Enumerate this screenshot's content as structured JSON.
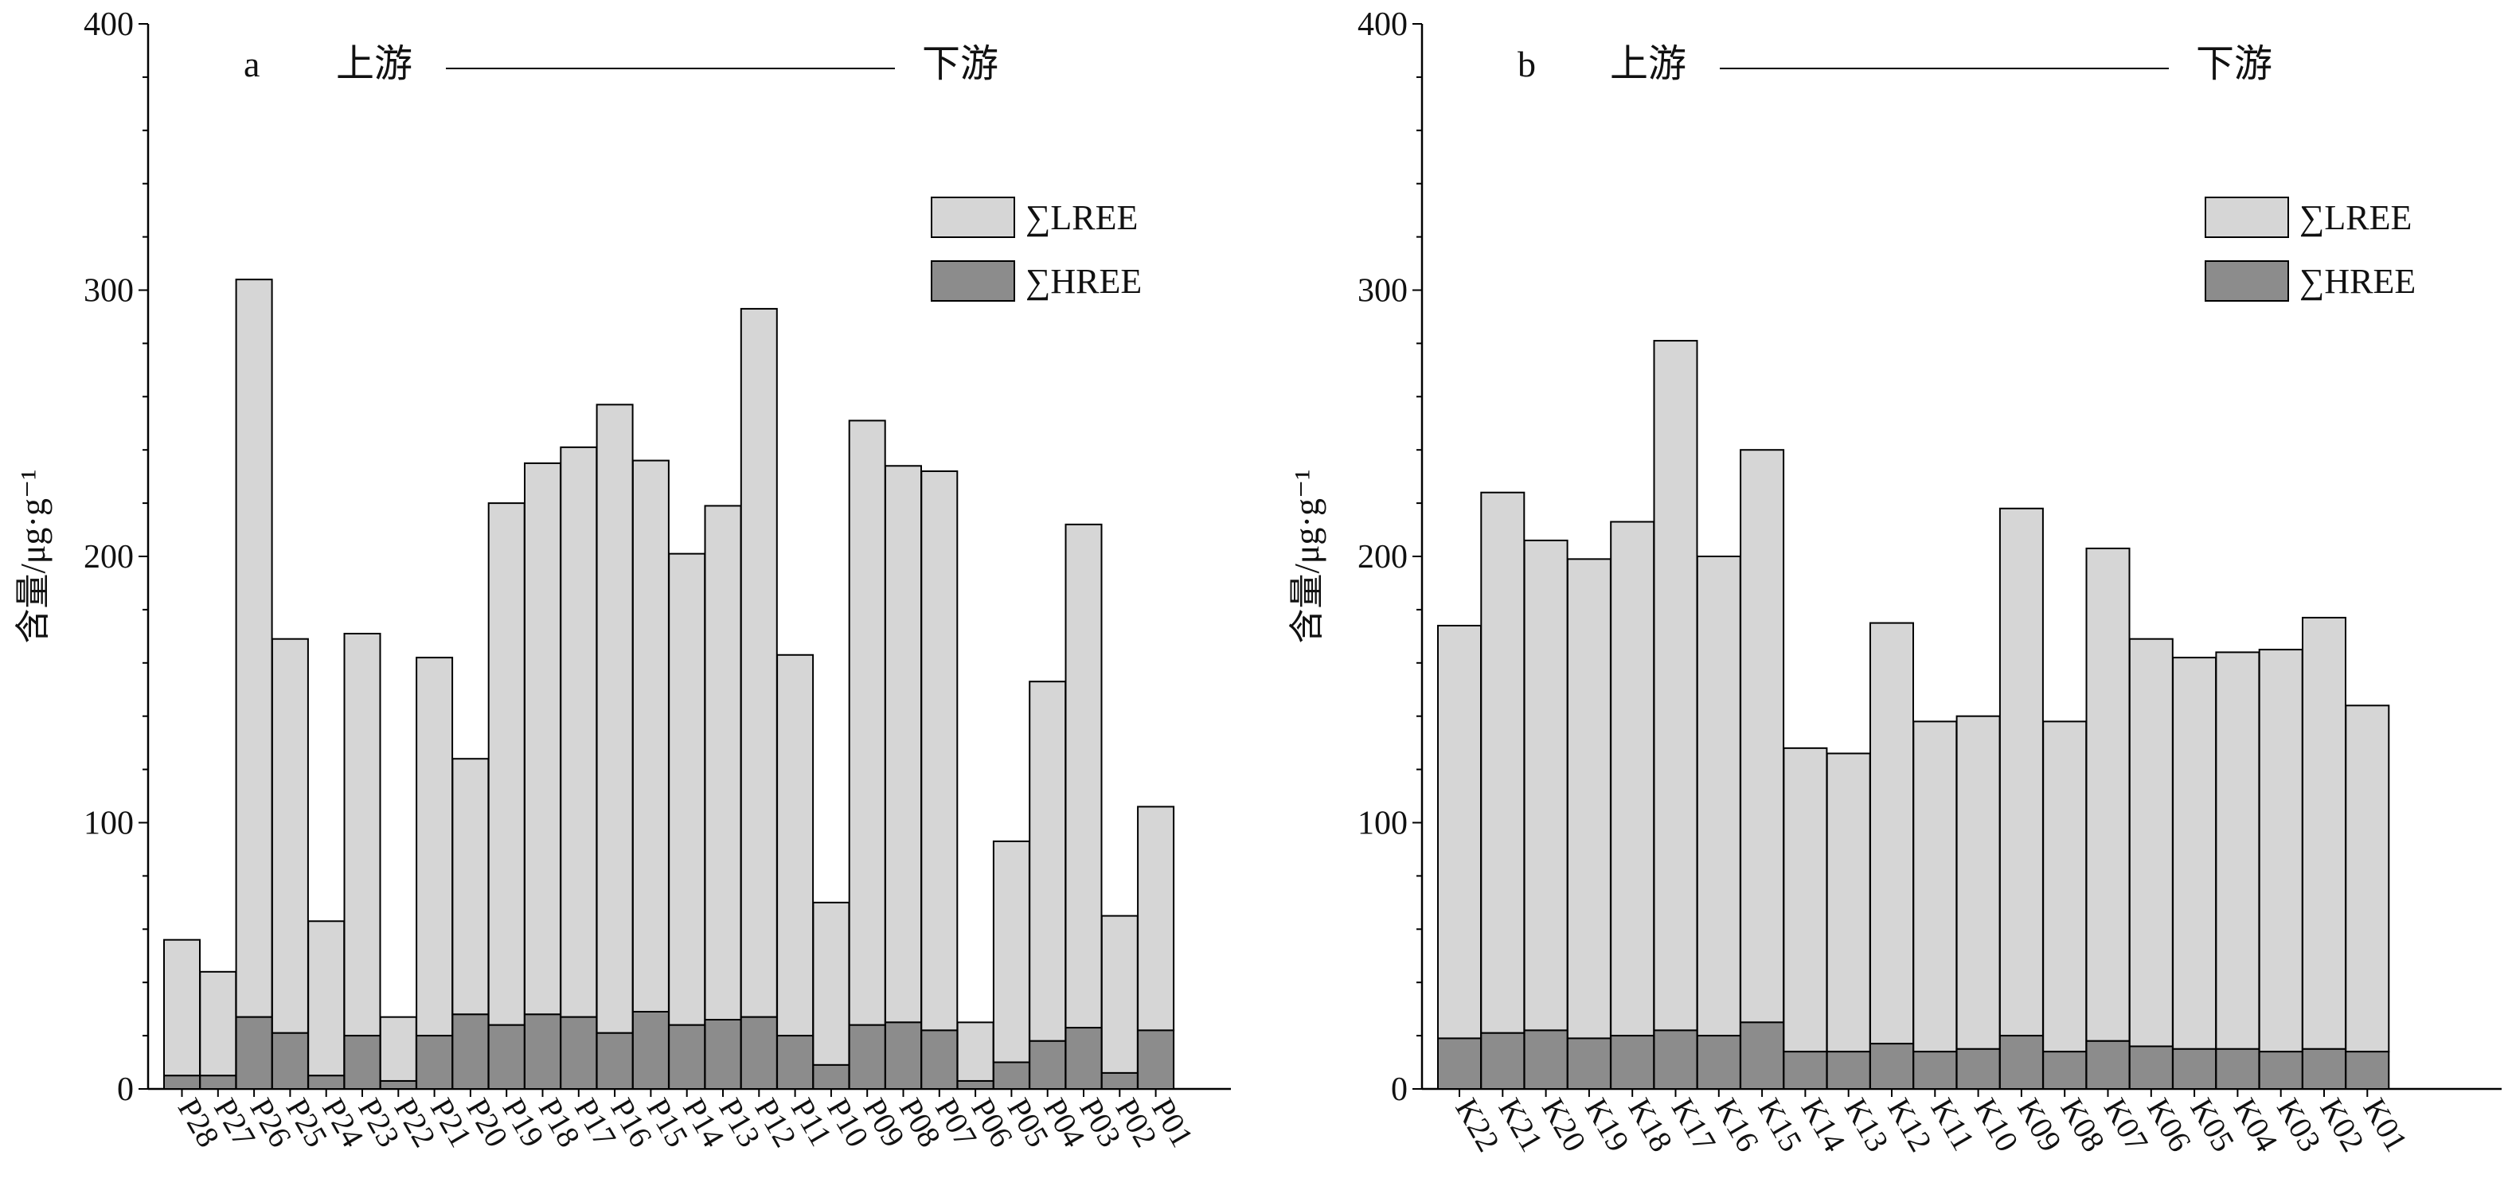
{
  "chart_data": [
    {
      "type": "bar",
      "stacked": true,
      "panel_label": "a",
      "upstream_label": "上游",
      "downstream_label": "下游",
      "ylabel": "含量/μg·g⁻¹",
      "ylim": [
        0,
        400
      ],
      "yticks": [
        0,
        100,
        200,
        300,
        400
      ],
      "legend_position": "top-right",
      "categories": [
        "P28",
        "P27",
        "P26",
        "P25",
        "P24",
        "P23",
        "P22",
        "P21",
        "P20",
        "P19",
        "P18",
        "P17",
        "P16",
        "P15",
        "P14",
        "P13",
        "P12",
        "P11",
        "P10",
        "P09",
        "P08",
        "P07",
        "P06",
        "P05",
        "P04",
        "P03",
        "P02",
        "P01"
      ],
      "series": [
        {
          "name": "∑HREE",
          "color": "#8c8c8c",
          "values": [
            5,
            5,
            27,
            21,
            5,
            20,
            3,
            20,
            28,
            24,
            28,
            27,
            21,
            29,
            24,
            26,
            27,
            20,
            9,
            24,
            25,
            22,
            3,
            10,
            18,
            23,
            6,
            22
          ]
        },
        {
          "name": "∑LREE",
          "color": "#d6d6d6",
          "values": [
            51,
            39,
            277,
            148,
            58,
            151,
            24,
            142,
            96,
            196,
            207,
            214,
            236,
            207,
            177,
            193,
            266,
            143,
            61,
            227,
            209,
            210,
            22,
            83,
            135,
            189,
            59,
            84
          ]
        }
      ]
    },
    {
      "type": "bar",
      "stacked": true,
      "panel_label": "b",
      "upstream_label": "上游",
      "downstream_label": "下游",
      "ylabel": "含量/μg·g⁻¹",
      "ylim": [
        0,
        400
      ],
      "yticks": [
        0,
        100,
        200,
        300,
        400
      ],
      "legend_position": "top-right",
      "categories": [
        "K22",
        "K21",
        "K20",
        "K19",
        "K18",
        "K17",
        "K16",
        "K15",
        "K14",
        "K13",
        "K12",
        "K11",
        "K10",
        "K09",
        "K08",
        "K07",
        "K06",
        "K05",
        "K04",
        "K03",
        "K02",
        "K01"
      ],
      "series": [
        {
          "name": "∑HREE",
          "color": "#8c8c8c",
          "values": [
            19,
            21,
            22,
            19,
            20,
            22,
            20,
            25,
            14,
            14,
            17,
            14,
            15,
            20,
            14,
            18,
            16,
            15,
            15,
            14,
            15,
            14
          ]
        },
        {
          "name": "∑LREE",
          "color": "#d6d6d6",
          "values": [
            155,
            203,
            184,
            180,
            193,
            259,
            180,
            215,
            114,
            112,
            158,
            124,
            125,
            198,
            124,
            185,
            153,
            147,
            149,
            151,
            162,
            130
          ]
        }
      ]
    }
  ]
}
